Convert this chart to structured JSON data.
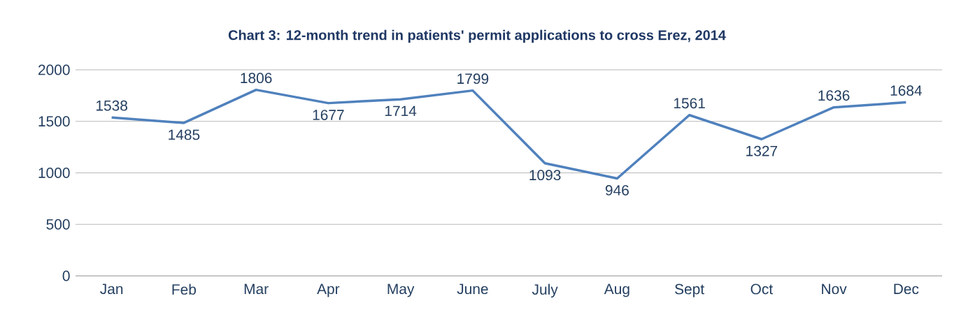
{
  "chart_data": {
    "type": "line",
    "title": "Chart 3: 12-month trend in patients' permit applications to cross Erez, 2014",
    "categories": [
      "Jan",
      "Feb",
      "Mar",
      "Apr",
      "May",
      "June",
      "July",
      "Aug",
      "Sept",
      "Oct",
      "Nov",
      "Dec"
    ],
    "series": [
      {
        "color": "#4f81bd",
        "values": [
          1538,
          1485,
          1806,
          1677,
          1714,
          1799,
          1093,
          946,
          1561,
          1327,
          1636,
          1684
        ]
      }
    ],
    "ylim": [
      0,
      2000
    ],
    "yticks": [
      0,
      500,
      1000,
      1500,
      2000
    ],
    "grid": "y",
    "marker": "none",
    "line_style": "solid",
    "data_labels": true
  }
}
